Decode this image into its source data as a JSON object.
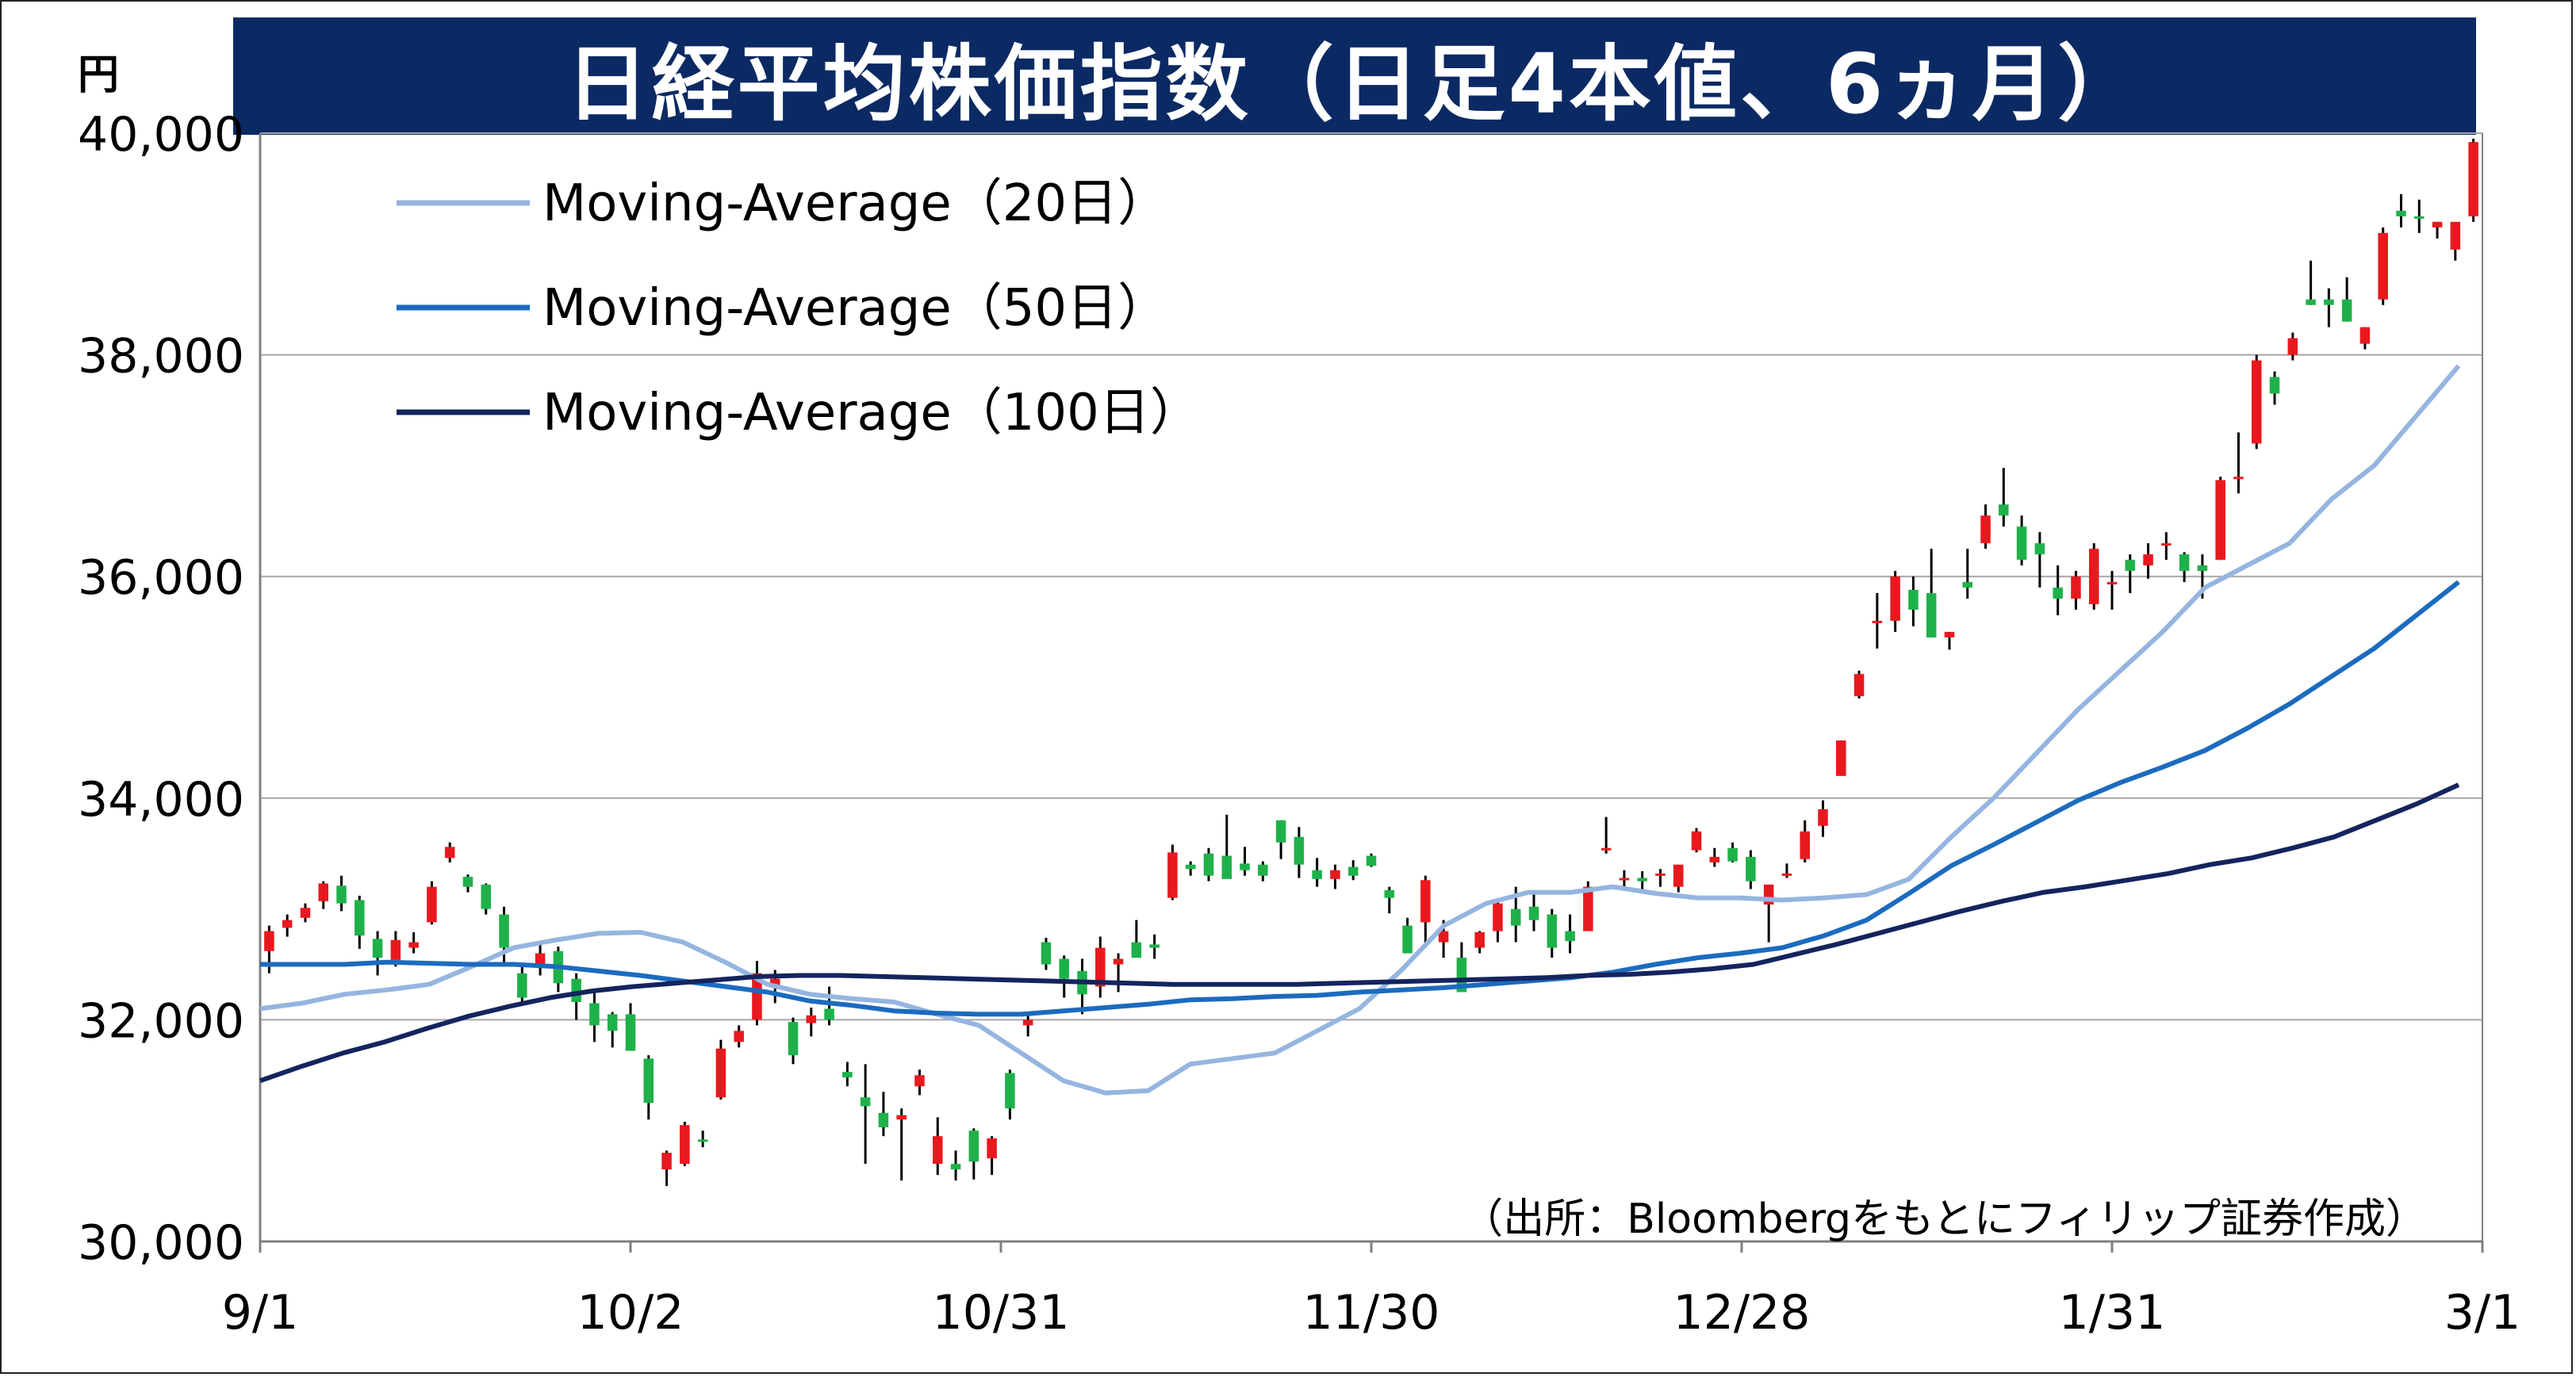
{
  "title": "日経平均株価指数（日足4本値、6ヵ月）",
  "unit": "円",
  "source_note": "（出所：Bloombergをもとにフィリップ証券作成）",
  "chart_data": {
    "type": "candlestick",
    "ylim": [
      30000,
      40000
    ],
    "yticks": [
      "30,000",
      "32,000",
      "34,000",
      "36,000",
      "38,000",
      "40,000"
    ],
    "xtick_labels": [
      "9/1",
      "10/2",
      "10/31",
      "11/30",
      "12/28",
      "1/31",
      "3/1"
    ],
    "grid": true,
    "legend_position": "top-left",
    "colors": {
      "up": "#e8191e",
      "down": "#1eb14a",
      "wick": "#000000"
    },
    "series": [
      {
        "name": "Moving-Average（20日）",
        "color": "#95b5e0",
        "values": [
          32100,
          32150,
          32230,
          32270,
          32320,
          32480,
          32650,
          32720,
          32780,
          32790,
          32700,
          32520,
          32320,
          32230,
          32190,
          32160,
          32050,
          31950,
          31700,
          31450,
          31340,
          31360,
          31600,
          31650,
          31700,
          31900,
          32100,
          32450,
          32850,
          33050,
          33150,
          33150,
          33200,
          33140,
          33100,
          33100,
          33080,
          33100,
          33130,
          33270,
          33650,
          34000,
          34400,
          34800,
          35150,
          35500,
          35900,
          36100,
          36300,
          36700,
          37000,
          37450,
          37900
        ]
      },
      {
        "name": "Moving-Average（50日）",
        "color": "#1b6bbf",
        "values": [
          32500,
          32500,
          32500,
          32520,
          32510,
          32500,
          32500,
          32480,
          32440,
          32400,
          32350,
          32300,
          32250,
          32170,
          32130,
          32080,
          32060,
          32050,
          32050,
          32080,
          32110,
          32140,
          32180,
          32190,
          32210,
          32220,
          32250,
          32270,
          32290,
          32320,
          32350,
          32380,
          32430,
          32500,
          32560,
          32600,
          32650,
          32760,
          32900,
          33140,
          33390,
          33580,
          33780,
          33980,
          34140,
          34280,
          34430,
          34630,
          34850,
          35100,
          35350,
          35650,
          35950
        ]
      },
      {
        "name": "Moving-Average（100日）",
        "color": "#14245e",
        "values": [
          31450,
          31580,
          31700,
          31800,
          31920,
          32030,
          32120,
          32200,
          32260,
          32300,
          32330,
          32360,
          32390,
          32400,
          32400,
          32390,
          32380,
          32370,
          32360,
          32350,
          32340,
          32330,
          32320,
          32320,
          32320,
          32320,
          32330,
          32340,
          32350,
          32360,
          32370,
          32380,
          32400,
          32410,
          32430,
          32460,
          32500,
          32590,
          32680,
          32780,
          32880,
          32980,
          33070,
          33150,
          33200,
          33260,
          33320,
          33400,
          33460,
          33550,
          33650,
          33800,
          33950,
          34120
        ]
      }
    ],
    "ohlc": [
      [
        32620,
        32850,
        32420,
        32800
      ],
      [
        32830,
        32950,
        32750,
        32900
      ],
      [
        32920,
        33050,
        32880,
        33010
      ],
      [
        33070,
        33250,
        33000,
        33230
      ],
      [
        33210,
        33300,
        32980,
        33050
      ],
      [
        33080,
        33120,
        32640,
        32760
      ],
      [
        32730,
        32800,
        32400,
        32560
      ],
      [
        32540,
        32800,
        32480,
        32720
      ],
      [
        32650,
        32790,
        32600,
        32700
      ],
      [
        32880,
        33250,
        32860,
        33200
      ],
      [
        33460,
        33600,
        33420,
        33560
      ],
      [
        33290,
        33310,
        33150,
        33200
      ],
      [
        33220,
        33230,
        32950,
        33000
      ],
      [
        32950,
        33020,
        32500,
        32650
      ],
      [
        32420,
        32480,
        32130,
        32200
      ],
      [
        32500,
        32700,
        32400,
        32600
      ],
      [
        32620,
        32660,
        32250,
        32330
      ],
      [
        32370,
        32420,
        32000,
        32160
      ],
      [
        32150,
        32250,
        31800,
        31950
      ],
      [
        32050,
        32070,
        31750,
        31900
      ],
      [
        32050,
        32150,
        31730,
        31720
      ],
      [
        31650,
        31680,
        31100,
        31250
      ],
      [
        30650,
        30820,
        30500,
        30800
      ],
      [
        30700,
        31080,
        30680,
        31050
      ],
      [
        30920,
        31000,
        30850,
        30900
      ],
      [
        31300,
        31820,
        31280,
        31740
      ],
      [
        31800,
        31950,
        31750,
        31900
      ],
      [
        32000,
        32530,
        31950,
        32420
      ],
      [
        32300,
        32450,
        32150,
        32370
      ],
      [
        31980,
        32020,
        31600,
        31680
      ],
      [
        31970,
        32110,
        31850,
        32040
      ],
      [
        32100,
        32300,
        31950,
        32000
      ],
      [
        31530,
        31620,
        31400,
        31480
      ],
      [
        31300,
        31600,
        30700,
        31220
      ],
      [
        31160,
        31350,
        30950,
        31030
      ],
      [
        31100,
        31200,
        30550,
        31140
      ],
      [
        31400,
        31550,
        31320,
        31500
      ],
      [
        30700,
        31120,
        30600,
        30950
      ],
      [
        30700,
        30820,
        30550,
        30650
      ],
      [
        31000,
        31020,
        30560,
        30720
      ],
      [
        30750,
        30950,
        30600,
        30930
      ],
      [
        31520,
        31550,
        31100,
        31200
      ],
      [
        31950,
        32070,
        31850,
        32000
      ],
      [
        32700,
        32740,
        32450,
        32500
      ],
      [
        32550,
        32580,
        32200,
        32370
      ],
      [
        32440,
        32550,
        32050,
        32230
      ],
      [
        32300,
        32750,
        32200,
        32650
      ],
      [
        32500,
        32600,
        32250,
        32550
      ],
      [
        32700,
        32900,
        32650,
        32560
      ],
      [
        32680,
        32770,
        32550,
        32650
      ],
      [
        33100,
        33580,
        33080,
        33510
      ],
      [
        33400,
        33430,
        33300,
        33360
      ],
      [
        33500,
        33550,
        33250,
        33300
      ],
      [
        33480,
        33850,
        33300,
        33270
      ],
      [
        33410,
        33560,
        33300,
        33350
      ],
      [
        33400,
        33430,
        33250,
        33300
      ],
      [
        33800,
        33800,
        33450,
        33600
      ],
      [
        33650,
        33740,
        33280,
        33400
      ],
      [
        33350,
        33460,
        33200,
        33270
      ],
      [
        33270,
        33400,
        33180,
        33350
      ],
      [
        33380,
        33440,
        33260,
        33300
      ],
      [
        33480,
        33500,
        33380,
        33390
      ],
      [
        33170,
        33200,
        32960,
        33100
      ],
      [
        32850,
        32920,
        32620,
        32600
      ],
      [
        32880,
        33300,
        32650,
        33260
      ],
      [
        32700,
        32900,
        32560,
        32800
      ],
      [
        32560,
        32700,
        32250,
        32250
      ],
      [
        32650,
        32800,
        32600,
        32790
      ],
      [
        32800,
        33080,
        32700,
        33050
      ],
      [
        33000,
        33200,
        32700,
        32850
      ],
      [
        33020,
        33150,
        32800,
        32900
      ],
      [
        32950,
        33000,
        32560,
        32650
      ],
      [
        32800,
        32950,
        32600,
        32710
      ],
      [
        32800,
        33250,
        32800,
        33200
      ],
      [
        33550,
        33830,
        33500,
        33550
      ],
      [
        33260,
        33350,
        33180,
        33280
      ],
      [
        33280,
        33340,
        33150,
        33250
      ],
      [
        33300,
        33360,
        33200,
        33320
      ],
      [
        33200,
        33390,
        33150,
        33400
      ],
      [
        33530,
        33730,
        33510,
        33700
      ],
      [
        33420,
        33550,
        33380,
        33470
      ],
      [
        33550,
        33600,
        33420,
        33430
      ],
      [
        33470,
        33530,
        33180,
        33250
      ],
      [
        33040,
        33150,
        32700,
        33220
      ],
      [
        33300,
        33410,
        33280,
        33320
      ],
      [
        33450,
        33800,
        33420,
        33700
      ],
      [
        33750,
        33980,
        33650,
        33900
      ],
      [
        34200,
        34520,
        34250,
        34520
      ],
      [
        34920,
        35150,
        34900,
        35120
      ],
      [
        35600,
        35850,
        35350,
        35600
      ],
      [
        35600,
        36050,
        35500,
        36000
      ],
      [
        35880,
        36000,
        35550,
        35700
      ],
      [
        35850,
        36250,
        35450,
        35450
      ],
      [
        35450,
        35500,
        35340,
        35500
      ],
      [
        35950,
        36250,
        35800,
        35900
      ],
      [
        36300,
        36650,
        36250,
        36550
      ],
      [
        36650,
        36980,
        36450,
        36550
      ],
      [
        36450,
        36550,
        36100,
        36150
      ],
      [
        36300,
        36400,
        35900,
        36200
      ],
      [
        35900,
        36100,
        35650,
        35800
      ],
      [
        35800,
        36050,
        35700,
        36000
      ],
      [
        35750,
        36300,
        35700,
        36250
      ],
      [
        35950,
        36050,
        35700,
        35950
      ],
      [
        36150,
        36200,
        35850,
        36050
      ],
      [
        36100,
        36300,
        35980,
        36200
      ],
      [
        36300,
        36400,
        36150,
        36300
      ],
      [
        36200,
        36220,
        35950,
        36050
      ],
      [
        36100,
        36200,
        35800,
        36050
      ],
      [
        36150,
        36900,
        36150,
        36870
      ],
      [
        36900,
        37300,
        36750,
        36900
      ],
      [
        37200,
        38000,
        37150,
        37950
      ],
      [
        37800,
        37850,
        37550,
        37650
      ],
      [
        38000,
        38200,
        37950,
        38150
      ],
      [
        38500,
        38850,
        38450,
        38450
      ],
      [
        38500,
        38600,
        38250,
        38450
      ],
      [
        38500,
        38700,
        38300,
        38300
      ],
      [
        38100,
        38250,
        38050,
        38250
      ],
      [
        38500,
        39150,
        38450,
        39100
      ],
      [
        39300,
        39450,
        39150,
        39250
      ],
      [
        39250,
        39400,
        39100,
        39230
      ],
      [
        39150,
        39200,
        39050,
        39200
      ],
      [
        38950,
        39180,
        38850,
        39200
      ],
      [
        39250,
        39950,
        39200,
        39920
      ]
    ]
  }
}
